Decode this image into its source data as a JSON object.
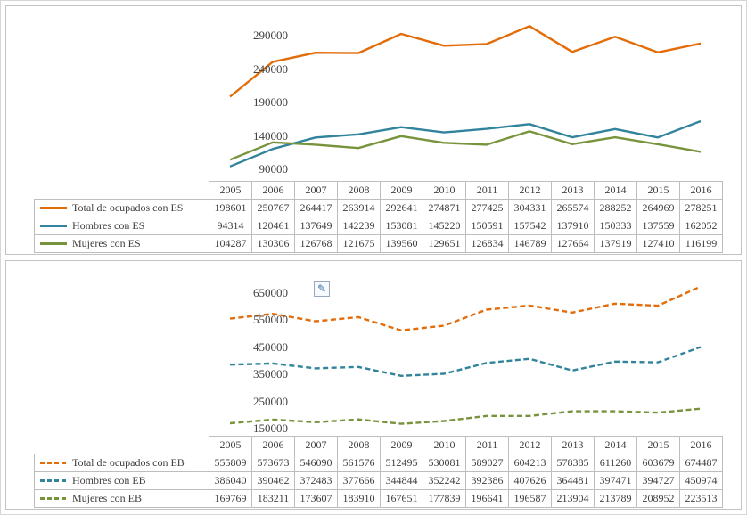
{
  "icons": {
    "pencil_glyph": "✎"
  },
  "colors": {
    "orange": "#E36C09",
    "teal": "#31849B",
    "olive": "#77933C",
    "panel_border": "#c3c3c3",
    "table_border": "#bdbdbd"
  },
  "chart_data": [
    {
      "type": "line",
      "title": "",
      "xlabel": "",
      "ylabel": "",
      "categories": [
        "2005",
        "2006",
        "2007",
        "2008",
        "2009",
        "2010",
        "2011",
        "2012",
        "2013",
        "2014",
        "2015",
        "2016"
      ],
      "y_ticks": [
        290000,
        240000,
        190000,
        140000,
        90000
      ],
      "ylim": [
        90000,
        290000
      ],
      "grid": false,
      "legend_position": "data-table-left",
      "series": [
        {
          "name": "Total de ocupados con ES",
          "color": "#E36C09",
          "style": "solid",
          "values": [
            198601,
            250767,
            264417,
            263914,
            292641,
            274871,
            277425,
            304331,
            265574,
            288252,
            264969,
            278251
          ]
        },
        {
          "name": "Hombres con ES",
          "color": "#31849B",
          "style": "solid",
          "values": [
            94314,
            120461,
            137649,
            142239,
            153081,
            145220,
            150591,
            157542,
            137910,
            150333,
            137559,
            162052
          ]
        },
        {
          "name": "Mujeres con ES",
          "color": "#77933C",
          "style": "solid",
          "values": [
            104287,
            130306,
            126768,
            121675,
            139560,
            129651,
            126834,
            146789,
            127664,
            137919,
            127410,
            116199
          ]
        }
      ]
    },
    {
      "type": "line",
      "title": "",
      "xlabel": "",
      "ylabel": "",
      "categories": [
        "2005",
        "2006",
        "2007",
        "2008",
        "2009",
        "2010",
        "2011",
        "2012",
        "2013",
        "2014",
        "2015",
        "2016"
      ],
      "y_ticks": [
        650000,
        550000,
        450000,
        350000,
        250000,
        150000
      ],
      "ylim": [
        150000,
        650000
      ],
      "grid": false,
      "legend_position": "data-table-left",
      "series": [
        {
          "name": "Total de ocupados con EB",
          "color": "#E36C09",
          "style": "dashed",
          "values": [
            555809,
            573673,
            546090,
            561576,
            512495,
            530081,
            589027,
            604213,
            578385,
            611260,
            603679,
            674487
          ]
        },
        {
          "name": "Hombres con EB",
          "color": "#31849B",
          "style": "dashed",
          "values": [
            386040,
            390462,
            372483,
            377666,
            344844,
            352242,
            392386,
            407626,
            364481,
            397471,
            394727,
            450974
          ]
        },
        {
          "name": "Mujeres con EB",
          "color": "#77933C",
          "style": "dashed",
          "values": [
            169769,
            183211,
            173607,
            183910,
            167651,
            177839,
            196641,
            196587,
            213904,
            213789,
            208952,
            223513
          ]
        }
      ]
    }
  ]
}
